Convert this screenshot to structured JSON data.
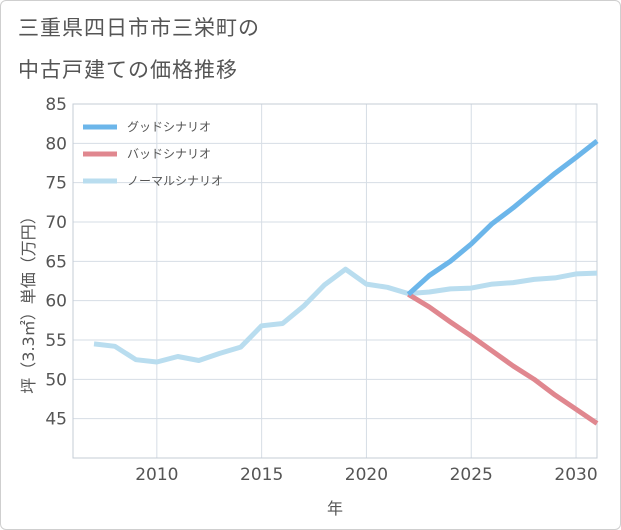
{
  "title_line1": "三重県四日市市三栄町の",
  "title_line2": "中古戸建ての価格推移",
  "chart_data": {
    "type": "line",
    "xlabel": "年",
    "ylabel": "坪（3.3㎡）単価（万円）",
    "xlim": [
      2006,
      2031
    ],
    "ylim": [
      40,
      85
    ],
    "xticks": [
      2010,
      2015,
      2020,
      2025,
      2030
    ],
    "yticks": [
      45,
      50,
      55,
      60,
      65,
      70,
      75,
      80,
      85
    ],
    "grid": true,
    "legend_position": "top-left",
    "series": [
      {
        "name": "グッドシナリオ",
        "color": "#6cb6ea",
        "x": [
          2022,
          2023,
          2024,
          2025,
          2026,
          2027,
          2028,
          2029,
          2030,
          2031
        ],
        "y": [
          60.8,
          63.2,
          65.0,
          67.2,
          69.8,
          71.8,
          74.0,
          76.2,
          78.2,
          80.3
        ]
      },
      {
        "name": "バッドシナリオ",
        "color": "#e0878f",
        "x": [
          2022,
          2023,
          2024,
          2025,
          2026,
          2027,
          2028,
          2029,
          2030,
          2031
        ],
        "y": [
          60.8,
          59.2,
          57.3,
          55.5,
          53.6,
          51.7,
          50.0,
          48.0,
          46.2,
          44.4
        ]
      },
      {
        "name": "ノーマルシナリオ",
        "color": "#b9ddef",
        "x": [
          2007,
          2008,
          2009,
          2010,
          2011,
          2012,
          2013,
          2014,
          2015,
          2016,
          2017,
          2018,
          2019,
          2020,
          2021,
          2022,
          2023,
          2024,
          2025,
          2026,
          2027,
          2028,
          2029,
          2030,
          2031
        ],
        "y": [
          54.5,
          54.2,
          52.5,
          52.2,
          52.9,
          52.4,
          53.3,
          54.1,
          56.8,
          57.1,
          59.3,
          62.0,
          64.0,
          62.1,
          61.7,
          60.9,
          61.1,
          61.5,
          61.6,
          62.1,
          62.3,
          62.7,
          62.9,
          63.4,
          63.5
        ]
      }
    ]
  }
}
